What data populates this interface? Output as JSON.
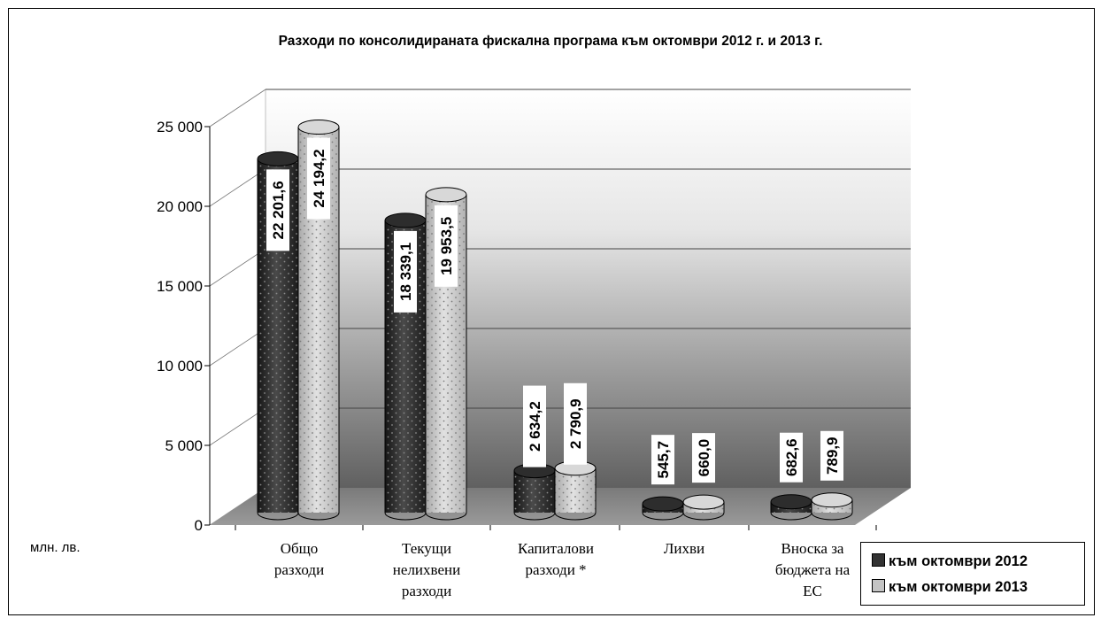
{
  "chart_data": {
    "type": "bar",
    "title": "Разходи по консолидираната фискална програма към октомври 2012 г. и 2013 г.",
    "ylabel": "млн. лв.",
    "ylim": [
      0,
      25000
    ],
    "yticks": [
      "0",
      "5 000",
      "10 000",
      "15 000",
      "20 000",
      "25 000"
    ],
    "grid": true,
    "legend_position": "bottom-right",
    "categories": [
      [
        "Общо",
        "разходи"
      ],
      [
        "Текущи",
        "нелихвени",
        "разходи"
      ],
      [
        "Капиталови",
        "разходи *"
      ],
      [
        "Лихви"
      ],
      [
        "Вноска за",
        "бюджета на",
        "ЕС"
      ]
    ],
    "series": [
      {
        "name": "към октомври 2012",
        "color": "#333333",
        "values": [
          22201.6,
          18339.1,
          2634.2,
          545.7,
          682.6
        ],
        "labels": [
          "22 201,6",
          "18 339,1",
          "2 634,2",
          "545,7",
          "682,6"
        ]
      },
      {
        "name": "към октомври 2013",
        "color": "#c4c4c4",
        "values": [
          24194.2,
          19953.5,
          2790.9,
          660.0,
          789.9
        ],
        "labels": [
          "24 194,2",
          "19 953,5",
          "2 790,9",
          "660,0",
          "789,9"
        ]
      }
    ]
  }
}
